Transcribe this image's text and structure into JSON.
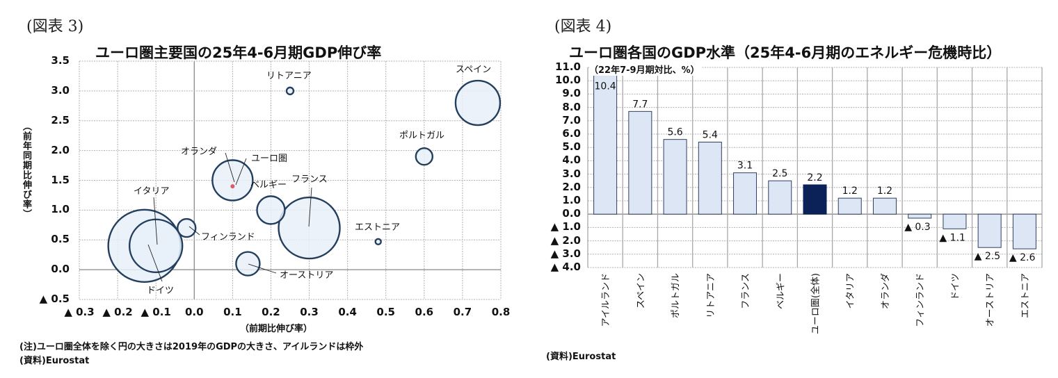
{
  "left": {
    "figure_label": "(図表 3)",
    "title": "ユーロ圏主要国の25年4-6月期GDP伸び率",
    "y_axis_title": "（前年同期比伸び率）",
    "x_axis_title": "（前期比伸び率）",
    "note": "(注)ユーロ圏全体を除く円の大きさは2019年のGDPの大きさ、アイルランドは枠外",
    "source": "(資料)Eurostat",
    "y_ticks": [
      "3.5",
      "3.0",
      "2.5",
      "2.0",
      "1.5",
      "1.0",
      "0.5",
      "0.0",
      "▲ 0.5"
    ],
    "x_ticks": [
      "▲ 0.3",
      "▲ 0.2",
      "▲ 0.1",
      "0.0",
      "0.1",
      "0.2",
      "0.3",
      "0.4",
      "0.5",
      "0.6",
      "0.7",
      "0.8"
    ]
  },
  "right": {
    "figure_label": "(図表 4)",
    "title": "ユーロ圏各国のGDP水準（25年4-6月期のエネルギー危機時比）",
    "unit_label": "（22年7-9月期対比、%）",
    "source": "(資料)Eurostat",
    "y_ticks": [
      "11.0",
      "10.0",
      "9.0",
      "8.0",
      "7.0",
      "6.0",
      "5.0",
      "4.0",
      "3.0",
      "2.0",
      "1.0",
      "0.0",
      "▲ 1.0",
      "▲ 2.0",
      "▲ 3.0",
      "▲ 4.0"
    ]
  },
  "colors": {
    "bubble_fill": "#e8f0f9",
    "bubble_stroke": "#243f5e",
    "euro_dot": "#e0595f",
    "bar_fill": "#dce6f4",
    "bar_stroke": "#2d3f5e",
    "bar_highlight": "#0b2258",
    "grid": "#a0a0a0"
  },
  "chart_data": [
    {
      "type": "scatter",
      "title": "ユーロ圏主要国の25年4-6月期GDP伸び率",
      "xlabel": "（前期比伸び率）",
      "ylabel": "（前年同期比伸び率）",
      "xlim": [
        -0.3,
        0.8
      ],
      "ylim": [
        -0.5,
        3.5
      ],
      "grid": true,
      "bubble_size_meaning": "2019年のGDPの大きさ",
      "points": [
        {
          "name": "スペイン",
          "x": 0.74,
          "y": 2.8,
          "r": 32
        },
        {
          "name": "リトアニア",
          "x": 0.25,
          "y": 3.0,
          "r": 5
        },
        {
          "name": "ポルトガル",
          "x": 0.6,
          "y": 1.9,
          "r": 12
        },
        {
          "name": "オランダ",
          "x": 0.1,
          "y": 1.5,
          "r": 29
        },
        {
          "name": "ユーロ圏",
          "x": 0.1,
          "y": 1.4,
          "r": 3,
          "marker": "dot"
        },
        {
          "name": "ベルギー",
          "x": 0.2,
          "y": 1.0,
          "r": 20
        },
        {
          "name": "フランス",
          "x": 0.3,
          "y": 0.7,
          "r": 44
        },
        {
          "name": "エストニア",
          "x": 0.48,
          "y": 0.47,
          "r": 4
        },
        {
          "name": "フィンランド",
          "x": -0.02,
          "y": 0.7,
          "r": 13
        },
        {
          "name": "イタリア",
          "x": -0.1,
          "y": 0.4,
          "r": 38
        },
        {
          "name": "ドイツ",
          "x": -0.13,
          "y": 0.4,
          "r": 52
        },
        {
          "name": "オーストリア",
          "x": 0.14,
          "y": 0.1,
          "r": 17
        }
      ]
    },
    {
      "type": "bar",
      "title": "ユーロ圏各国のGDP水準（25年4-6月期のエネルギー危機時比）",
      "ylabel": "（22年7-9月期対比、%）",
      "ylim": [
        -4.0,
        11.0
      ],
      "grid": true,
      "categories": [
        "アイルランド",
        "スペイン",
        "ポルトガル",
        "リトアニア",
        "フランス",
        "ベルギー",
        "ユーロ圏(全体)",
        "イタリア",
        "オランダ",
        "フィンランド",
        "ドイツ",
        "オーストリア",
        "エストニア"
      ],
      "values": [
        10.4,
        7.7,
        5.6,
        5.4,
        3.1,
        2.5,
        2.2,
        1.2,
        1.2,
        -0.3,
        -1.1,
        -2.5,
        -2.6
      ],
      "value_labels": [
        "10.4",
        "7.7",
        "5.6",
        "5.4",
        "3.1",
        "2.5",
        "2.2",
        "1.2",
        "1.2",
        "▲ 0.3",
        "▲ 1.1",
        "▲ 2.5",
        "▲ 2.6"
      ],
      "highlight": "ユーロ圏(全体)"
    }
  ]
}
